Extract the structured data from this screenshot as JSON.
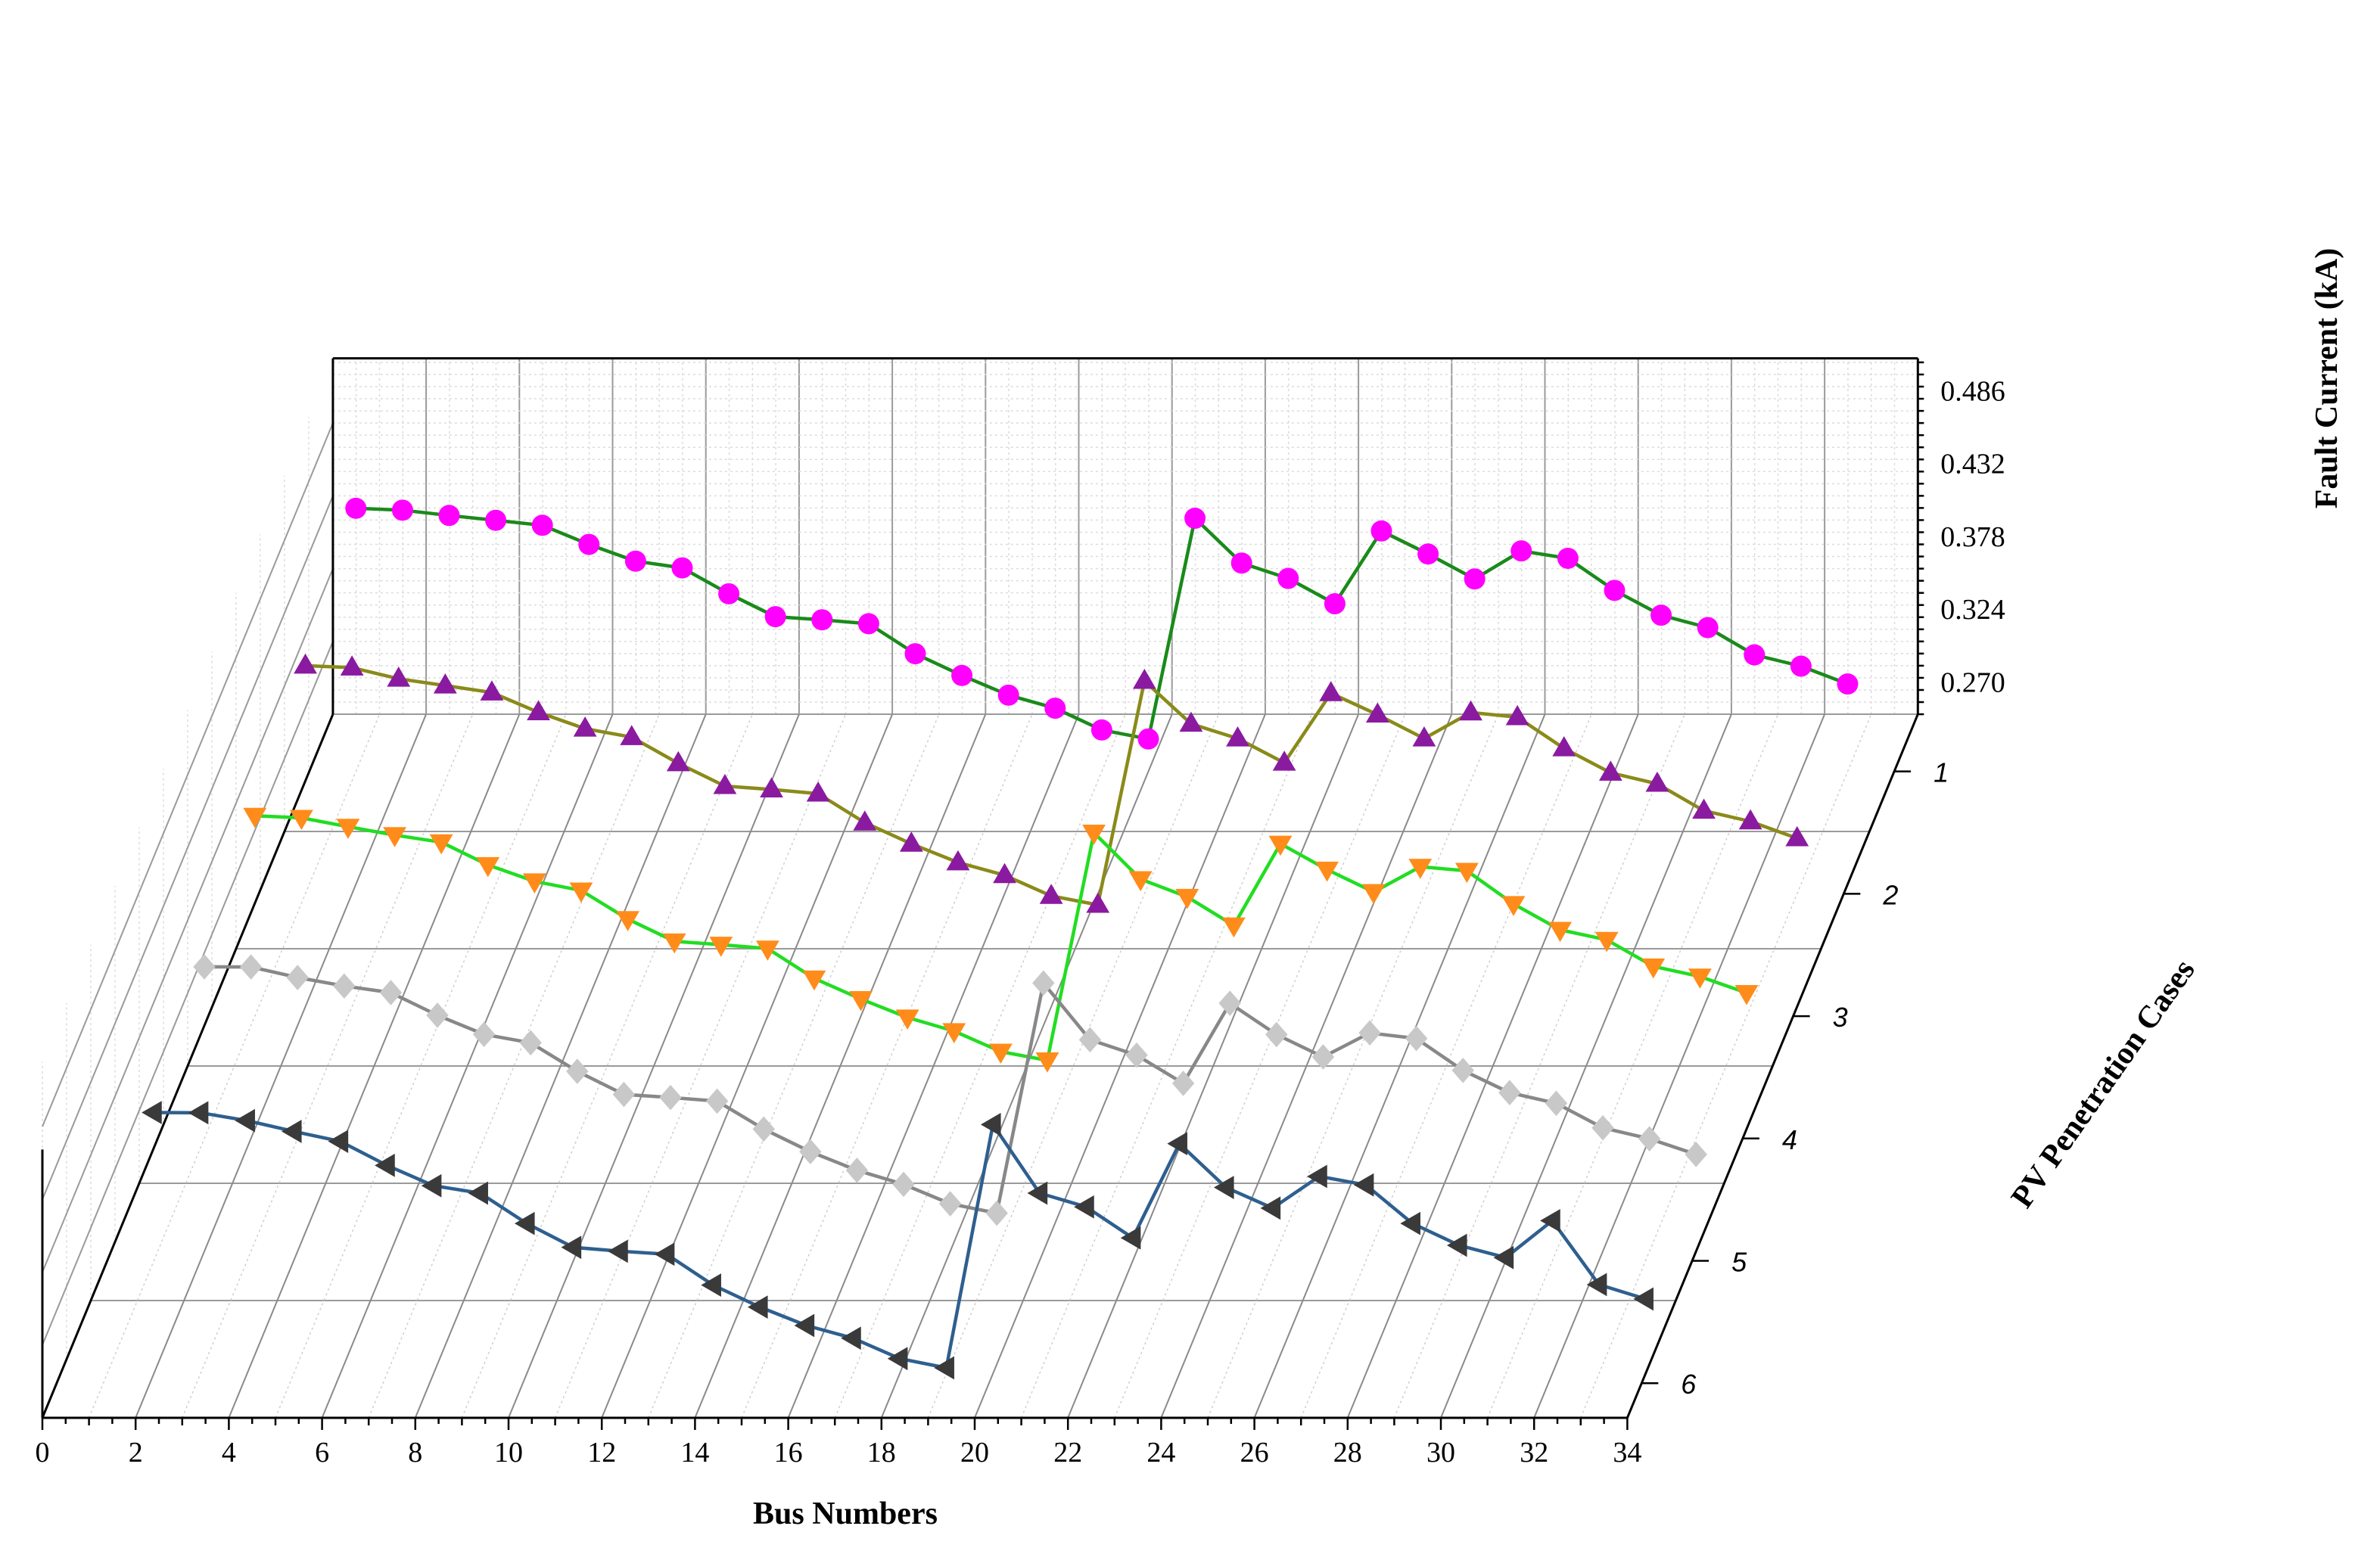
{
  "chart_data": {
    "type": "line3d",
    "title": "",
    "xlabel": "Bus Numbers",
    "ylabel": "PV Penetration Cases",
    "zlabel": "Fault Current (kA)",
    "x_ticks": [
      "0",
      "2",
      "4",
      "6",
      "8",
      "10",
      "12",
      "14",
      "16",
      "18",
      "20",
      "22",
      "24",
      "26",
      "28",
      "30",
      "32",
      "34"
    ],
    "y_ticks": [
      "1",
      "2",
      "3",
      "4",
      "5",
      "6"
    ],
    "z_ticks": [
      "0.270",
      "0.324",
      "0.378",
      "0.432",
      "0.486"
    ],
    "xlim": [
      0,
      34
    ],
    "zlim": [
      0.246,
      0.51
    ],
    "grid": true,
    "series": [
      {
        "case": 1,
        "color": "#1a8a1a",
        "marker_color": "#ff00ff",
        "marker": "circle",
        "x": [
          1,
          2,
          3,
          4,
          5,
          6,
          7,
          8,
          9,
          10,
          11,
          12,
          13,
          14,
          15,
          16,
          17,
          18,
          19,
          20,
          21,
          22,
          23,
          24,
          25,
          26,
          27,
          28,
          29,
          30,
          31,
          32,
          33
        ],
        "y": [
          0.4412,
          0.4398,
          0.4359,
          0.4323,
          0.4286,
          0.4144,
          0.402,
          0.397,
          0.3778,
          0.3608,
          0.3585,
          0.3556,
          0.3333,
          0.3172,
          0.3026,
          0.2929,
          0.2768,
          0.2701,
          0.4338,
          0.4006,
          0.3892,
          0.3704,
          0.4244,
          0.4073,
          0.3888,
          0.4096,
          0.4041,
          0.3803,
          0.3619,
          0.3527,
          0.3325,
          0.3241,
          0.3109
        ]
      },
      {
        "case": 2,
        "color": "#8a8a1a",
        "marker_color": "#8a1aa0",
        "marker": "triangle-up",
        "x": [
          1,
          2,
          3,
          4,
          5,
          6,
          7,
          8,
          9,
          10,
          11,
          12,
          13,
          14,
          15,
          16,
          17,
          18,
          19,
          20,
          21,
          22,
          23,
          24,
          25,
          26,
          27,
          28,
          29,
          30,
          31,
          32,
          33
        ],
        "y": [
          0.4152,
          0.4138,
          0.4055,
          0.4005,
          0.3953,
          0.3806,
          0.3685,
          0.3622,
          0.3428,
          0.3259,
          0.3234,
          0.3203,
          0.2988,
          0.2831,
          0.2693,
          0.2598,
          0.2444,
          0.2378,
          0.4039,
          0.3721,
          0.3612,
          0.3432,
          0.3948,
          0.3789,
          0.3612,
          0.3805,
          0.377,
          0.3539,
          0.3358,
          0.3276,
          0.3076,
          0.2997,
          0.2872
        ]
      },
      {
        "case": 3,
        "color": "#22dd22",
        "marker_color": "#ff8c1a",
        "marker": "triangle-down",
        "x": [
          1,
          2,
          3,
          4,
          5,
          6,
          7,
          8,
          9,
          10,
          11,
          12,
          13,
          14,
          15,
          16,
          17,
          18,
          19,
          20,
          21,
          22,
          23,
          24,
          25,
          26,
          27,
          28,
          29,
          30,
          31,
          32,
          33
        ],
        "y": [
          0.3946,
          0.3931,
          0.3865,
          0.3803,
          0.375,
          0.3581,
          0.346,
          0.3392,
          0.318,
          0.3015,
          0.299,
          0.2961,
          0.274,
          0.2587,
          0.245,
          0.2349,
          0.2197,
          0.2132,
          0.3821,
          0.3476,
          0.3345,
          0.3133,
          0.3739,
          0.3547,
          0.3381,
          0.3568,
          0.3538,
          0.3292,
          0.31,
          0.3026,
          0.2829,
          0.2754,
          0.2632
        ]
      },
      {
        "case": 4,
        "color": "#888888",
        "marker_color": "#c8c8c8",
        "marker": "diamond",
        "x": [
          1,
          2,
          3,
          4,
          5,
          6,
          7,
          8,
          9,
          10,
          11,
          12,
          13,
          14,
          15,
          16,
          17,
          18,
          19,
          20,
          21,
          22,
          23,
          24,
          25,
          26,
          27,
          28,
          29,
          30,
          31,
          32,
          33
        ],
        "y": [
          0.3733,
          0.3732,
          0.3654,
          0.3591,
          0.3542,
          0.3374,
          0.3232,
          0.317,
          0.2958,
          0.2787,
          0.2764,
          0.2737,
          0.253,
          0.2362,
          0.2224,
          0.212,
          0.1976,
          0.1906,
          0.3613,
          0.3192,
          0.3078,
          0.2869,
          0.3463,
          0.3231,
          0.3065,
          0.3243,
          0.3202,
          0.2965,
          0.28,
          0.2721,
          0.2539,
          0.2458,
          0.2342
        ]
      },
      {
        "case": 5,
        "color": "#2e5f8f",
        "marker_color": "#3a3a3a",
        "marker": "triangle-left",
        "x": [
          1,
          2,
          3,
          4,
          5,
          6,
          7,
          8,
          9,
          10,
          11,
          12,
          13,
          14,
          15,
          16,
          17,
          18,
          19,
          20,
          21,
          22,
          23,
          24,
          25,
          26,
          27,
          28,
          29,
          30,
          31,
          32,
          33
        ],
        "y": [
          0.356,
          0.3558,
          0.35,
          0.342,
          0.3346,
          0.3168,
          0.3017,
          0.2962,
          0.2737,
          0.256,
          0.2531,
          0.2509,
          0.228,
          0.2117,
          0.198,
          0.1886,
          0.1735,
          0.1666,
          0.3471,
          0.2962,
          0.286,
          0.263,
          0.3329,
          0.3004,
          0.2851,
          0.3086,
          0.3023,
          0.2737,
          0.2575,
          0.2484,
          0.2758,
          0.2284,
          0.2177
        ]
      }
    ]
  }
}
